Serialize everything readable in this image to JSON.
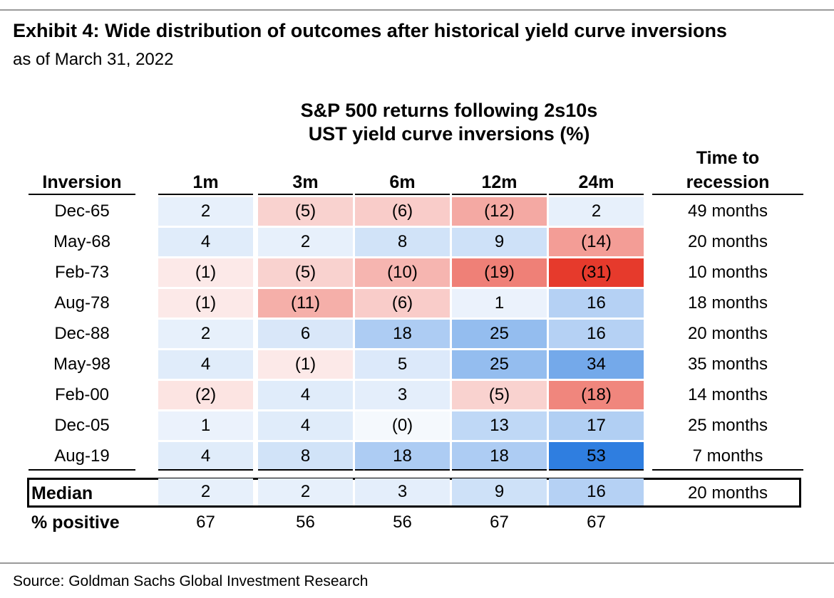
{
  "header": {
    "title": "Exhibit 4: Wide distribution of outcomes after historical yield curve inversions",
    "subtitle": "as of March 31, 2022"
  },
  "table_title": {
    "line1": "S&P 500 returns following 2s10s",
    "line2": "UST yield curve inversions (%)"
  },
  "source": "Source: Goldman Sachs Global Investment Research",
  "colors": {
    "negative_max": "#e63a2c",
    "positive_max": "#2f7ee0",
    "neutral": "#ffffff"
  },
  "chart_data": {
    "type": "heatmap",
    "title": "S&P 500 returns following 2s10s UST yield curve inversions (%)",
    "row_header": "Inversion",
    "columns": [
      "1m",
      "3m",
      "6m",
      "12m",
      "24m"
    ],
    "extra_column": {
      "line1": "Time to",
      "line2": "recession"
    },
    "rows": [
      {
        "label": "Dec-65",
        "values": [
          2,
          -5,
          -6,
          -12,
          2
        ],
        "display": [
          "2",
          "(5)",
          "(6)",
          "(12)",
          "2"
        ],
        "recession": "49 months"
      },
      {
        "label": "May-68",
        "values": [
          4,
          2,
          8,
          9,
          -14
        ],
        "display": [
          "4",
          "2",
          "8",
          "9",
          "(14)"
        ],
        "recession": "20 months"
      },
      {
        "label": "Feb-73",
        "values": [
          -1,
          -5,
          -10,
          -19,
          -31
        ],
        "display": [
          "(1)",
          "(5)",
          "(10)",
          "(19)",
          "(31)"
        ],
        "recession": "10 months"
      },
      {
        "label": "Aug-78",
        "values": [
          -1,
          -11,
          -6,
          1,
          16
        ],
        "display": [
          "(1)",
          "(11)",
          "(6)",
          "1",
          "16"
        ],
        "recession": "18 months"
      },
      {
        "label": "Dec-88",
        "values": [
          2,
          6,
          18,
          25,
          16
        ],
        "display": [
          "2",
          "6",
          "18",
          "25",
          "16"
        ],
        "recession": "20 months"
      },
      {
        "label": "May-98",
        "values": [
          4,
          -1,
          5,
          25,
          34
        ],
        "display": [
          "4",
          "(1)",
          "5",
          "25",
          "34"
        ],
        "recession": "35 months"
      },
      {
        "label": "Feb-00",
        "values": [
          -2,
          4,
          3,
          -5,
          -18
        ],
        "display": [
          "(2)",
          "4",
          "3",
          "(5)",
          "(18)"
        ],
        "recession": "14 months"
      },
      {
        "label": "Dec-05",
        "values": [
          1,
          4,
          0,
          13,
          17
        ],
        "display": [
          "1",
          "4",
          "(0)",
          "13",
          "17"
        ],
        "recession": "25 months"
      },
      {
        "label": "Aug-19",
        "values": [
          4,
          8,
          18,
          18,
          53
        ],
        "display": [
          "4",
          "8",
          "18",
          "18",
          "53"
        ],
        "recession": "7 months"
      }
    ],
    "median": {
      "label": "Median",
      "values": [
        2,
        2,
        3,
        9,
        16
      ],
      "display": [
        "2",
        "2",
        "3",
        "9",
        "16"
      ],
      "recession": "20 months"
    },
    "percent_positive": {
      "label": "% positive",
      "values": [
        "67",
        "56",
        "56",
        "67",
        "67"
      ]
    }
  }
}
